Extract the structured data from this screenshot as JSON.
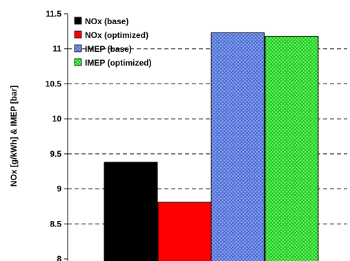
{
  "chart_data": {
    "type": "bar",
    "title": "",
    "xlabel": "",
    "ylabel": "NOx [g/kWh] & IMEP [bar]",
    "ylim": [
      8,
      11.5
    ],
    "yticks": [
      "8",
      "8.5",
      "9",
      "9.5",
      "10",
      "10.5",
      "11",
      "11.5"
    ],
    "grid": "horizontal dashed",
    "legend_position": "top-left inside",
    "series": [
      {
        "name": "NOx (base)",
        "value": 9.38,
        "color": "#000000",
        "pattern": "solid"
      },
      {
        "name": "NOx (optimized)",
        "value": 8.81,
        "color": "#ff0000",
        "pattern": "solid"
      },
      {
        "name": "IMEP (base)",
        "value": 11.23,
        "color": "#5b7fe0",
        "pattern": "crosshatch"
      },
      {
        "name": "IMEP (optimized)",
        "value": 11.18,
        "color": "#22dd22",
        "pattern": "crosshatch"
      }
    ]
  }
}
